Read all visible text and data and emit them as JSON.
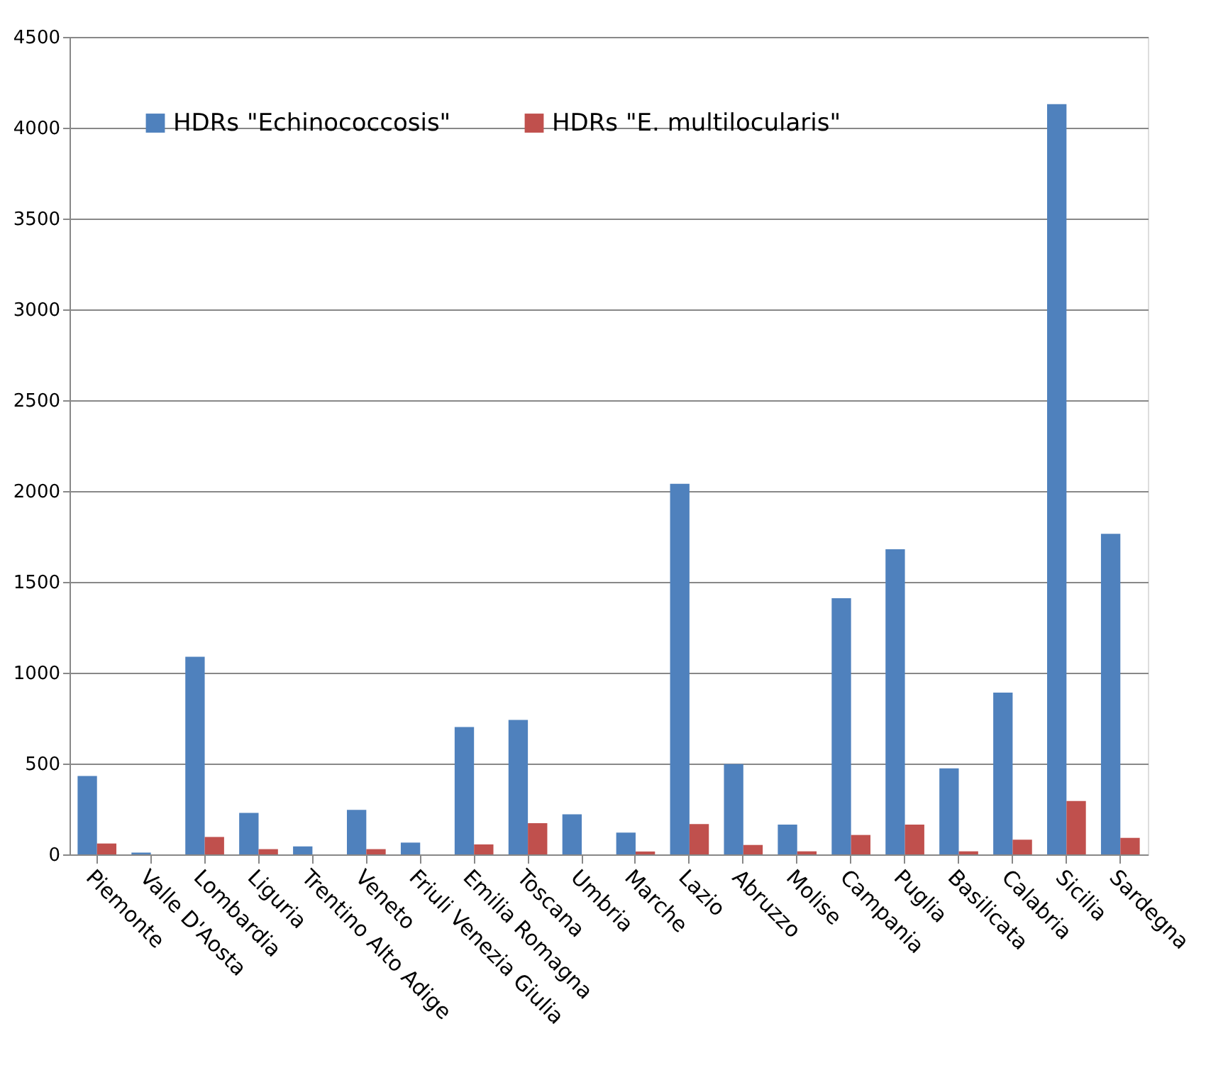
{
  "chart_data": {
    "type": "bar",
    "categories": [
      "Piemonte",
      "Valle D'Aosta",
      "Lombardia",
      "Liguria",
      "Trentino Alto Adige",
      "Veneto",
      "Friuli Venezia Giulia",
      "Emilia Romagna",
      "Toscana",
      "Umbria",
      "Marche",
      "Lazio",
      "Abruzzo",
      "Molise",
      "Campania",
      "Puglia",
      "Basilicata",
      "Calabria",
      "Sicilia",
      "Sardegna"
    ],
    "series": [
      {
        "name": "HDRs \"Echinococcosis\"",
        "color": "#4f81bd",
        "values": [
          432,
          10,
          1088,
          229,
          44,
          245,
          65,
          701,
          740,
          221,
          120,
          2040,
          497,
          164,
          1410,
          1680,
          474,
          891,
          4130,
          1765
        ]
      },
      {
        "name": "HDRs \"E. multilocularis\"",
        "color": "#c0504d",
        "values": [
          60,
          0,
          96,
          29,
          0,
          29,
          0,
          55,
          172,
          0,
          16,
          167,
          52,
          17,
          107,
          164,
          17,
          81,
          294,
          91
        ]
      }
    ],
    "ylim": [
      0,
      4500
    ],
    "yticks": [
      0,
      500,
      1000,
      1500,
      2000,
      2500,
      3000,
      3500,
      4000,
      4500
    ],
    "grid": "y",
    "legend": "top left"
  }
}
